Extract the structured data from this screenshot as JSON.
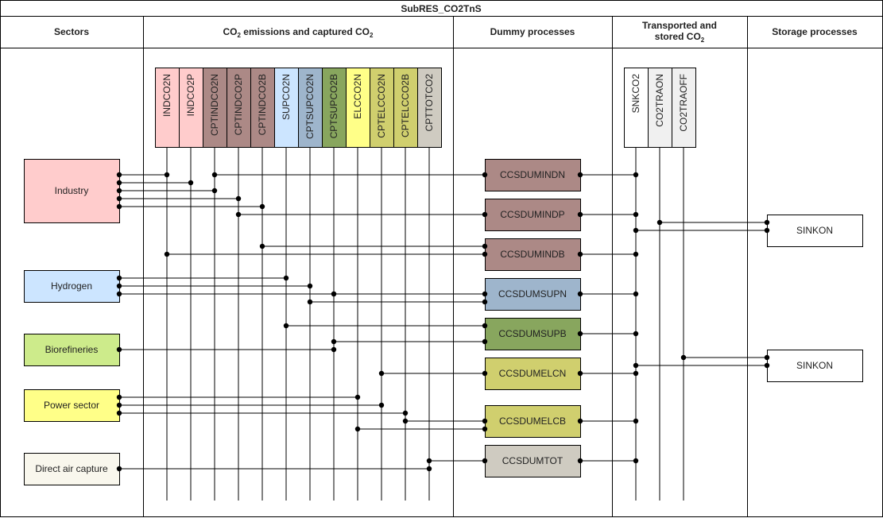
{
  "title": "SubRES_CO2TnS",
  "headers": {
    "sectors": "Sectors",
    "emissions_pre": "CO",
    "emissions_sub": "2",
    "emissions_mid": " emissions and captured CO",
    "emissions_sub2": "2",
    "dummy": "Dummy processes",
    "transport_line1": "Transported and",
    "transport_line2_pre": "stored CO",
    "transport_line2_sub": "2",
    "storage": "Storage processes"
  },
  "sectors": [
    {
      "id": "industry",
      "label": "Industry",
      "color": "#ffcccc"
    },
    {
      "id": "hydrogen",
      "label": "Hydrogen",
      "color": "#cce5ff"
    },
    {
      "id": "biorefineries",
      "label": "Biorefineries",
      "color": "#cdeb8b"
    },
    {
      "id": "power",
      "label": "Power sector",
      "color": "#ffff88"
    },
    {
      "id": "dac",
      "label": "Direct air capture",
      "color": "#f9f7ed"
    }
  ],
  "commodities": [
    {
      "id": "INDCO2N",
      "label": "INDCO2N",
      "color": "#ffcccc"
    },
    {
      "id": "INDCO2P",
      "label": "INDCO2P",
      "color": "#ffcccc"
    },
    {
      "id": "CPTINDCO2N",
      "label": "CPTINDCO2N",
      "color": "#ac8986"
    },
    {
      "id": "CPTINDCO2P",
      "label": "CPTINDCO2P",
      "color": "#ac8986"
    },
    {
      "id": "CPTINDCO2B",
      "label": "CPTINDCO2B",
      "color": "#ac8986"
    },
    {
      "id": "SUPCO2N",
      "label": "SUPCO2N",
      "color": "#cce5ff"
    },
    {
      "id": "CPTSUPCO2N",
      "label": "CPTSUPCO2N",
      "color": "#9eb5cc"
    },
    {
      "id": "CPTSUPCO2B",
      "label": "CPTSUPCO2B",
      "color": "#88a65e"
    },
    {
      "id": "ELCCO2N",
      "label": "ELCCO2N",
      "color": "#ffff88"
    },
    {
      "id": "CPTELCCO2N",
      "label": "CPTELCCO2N",
      "color": "#d0cf6e"
    },
    {
      "id": "CPTELCCO2B",
      "label": "CPTELCCO2B",
      "color": "#d0cf6e"
    },
    {
      "id": "CPTTOTCO2",
      "label": "CPTTOTCO2",
      "color": "#cfcbc1"
    }
  ],
  "dummies": [
    {
      "id": "CCSDUMINDN",
      "label": "CCSDUMINDN",
      "color": "#ac8986"
    },
    {
      "id": "CCSDUMINDP",
      "label": "CCSDUMINDP",
      "color": "#ac8986"
    },
    {
      "id": "CCSDUMINDB",
      "label": "CCSDUMINDB",
      "color": "#ac8986"
    },
    {
      "id": "CCSDUMSUPN",
      "label": "CCSDUMSUPN",
      "color": "#9eb5cc"
    },
    {
      "id": "CCSDUMSUPB",
      "label": "CCSDUMSUPB",
      "color": "#88a65e"
    },
    {
      "id": "CCSDUMELCN",
      "label": "CCSDUMELCN",
      "color": "#d0cf6e"
    },
    {
      "id": "CCSDUMELCB",
      "label": "CCSDUMELCB",
      "color": "#d0cf6e"
    },
    {
      "id": "CCSDUMTOT",
      "label": "CCSDUMTOT",
      "color": "#cfcbc1"
    }
  ],
  "transport": [
    {
      "id": "SNKCO2",
      "label": "SNKCO2",
      "color": "#ffffff"
    },
    {
      "id": "CO2TRAON",
      "label": "CO2TRAON",
      "color": "#f0f0f0"
    },
    {
      "id": "CO2TRAOFF",
      "label": "CO2TRAOFF",
      "color": "#f0f0f0"
    }
  ],
  "storage": [
    {
      "id": "SINKON1",
      "label": "SINKON"
    },
    {
      "id": "SINKON2",
      "label": "SINKON"
    }
  ]
}
